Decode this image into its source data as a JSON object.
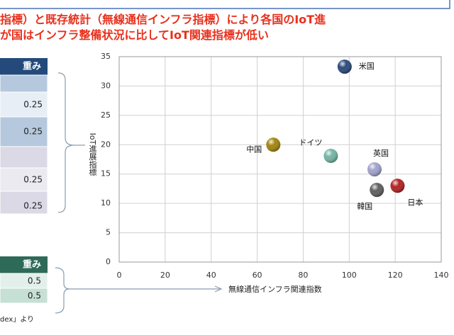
{
  "heading": {
    "lines": [
      "指標）と既存統計（無線通信インフラ指標）により各国のIoT進",
      "が国はインフラ整備状況に比してIoT関連指標が低い"
    ]
  },
  "weight_tables": [
    {
      "header": "重み",
      "rows": [
        0.25,
        0.25,
        0.25,
        0.25
      ]
    },
    {
      "header": "重み",
      "rows": [
        0.5,
        0.5
      ]
    }
  ],
  "footnote": "dex」より",
  "chart_data": {
    "type": "scatter",
    "x_label": "無線通信インフラ関連指数",
    "y_label": "IoT進展指標",
    "xlim": [
      0,
      140
    ],
    "xticks": [
      0,
      20,
      40,
      60,
      80,
      100,
      120,
      140
    ],
    "ylim": [
      0,
      35
    ],
    "yticks": [
      0,
      5,
      10,
      15,
      20,
      25,
      30,
      35
    ],
    "grid": true,
    "series": [
      {
        "name": "米国",
        "color": "#2b4a7c",
        "x": [
          98
        ],
        "values": [
          33.3
        ]
      },
      {
        "name": "中国",
        "color": "#a3850f",
        "x": [
          67
        ],
        "values": [
          20
        ]
      },
      {
        "name": "ドイツ",
        "color": "#74b5a5",
        "x": [
          92
        ],
        "values": [
          18.1
        ]
      },
      {
        "name": "英国",
        "color": "#a2a2cc",
        "x": [
          111
        ],
        "values": [
          15.8
        ]
      },
      {
        "name": "日本",
        "color": "#b32222",
        "x": [
          121
        ],
        "values": [
          13
        ]
      },
      {
        "name": "韓国",
        "color": "#5f5f5f",
        "x": [
          112
        ],
        "values": [
          12.3
        ]
      }
    ]
  }
}
